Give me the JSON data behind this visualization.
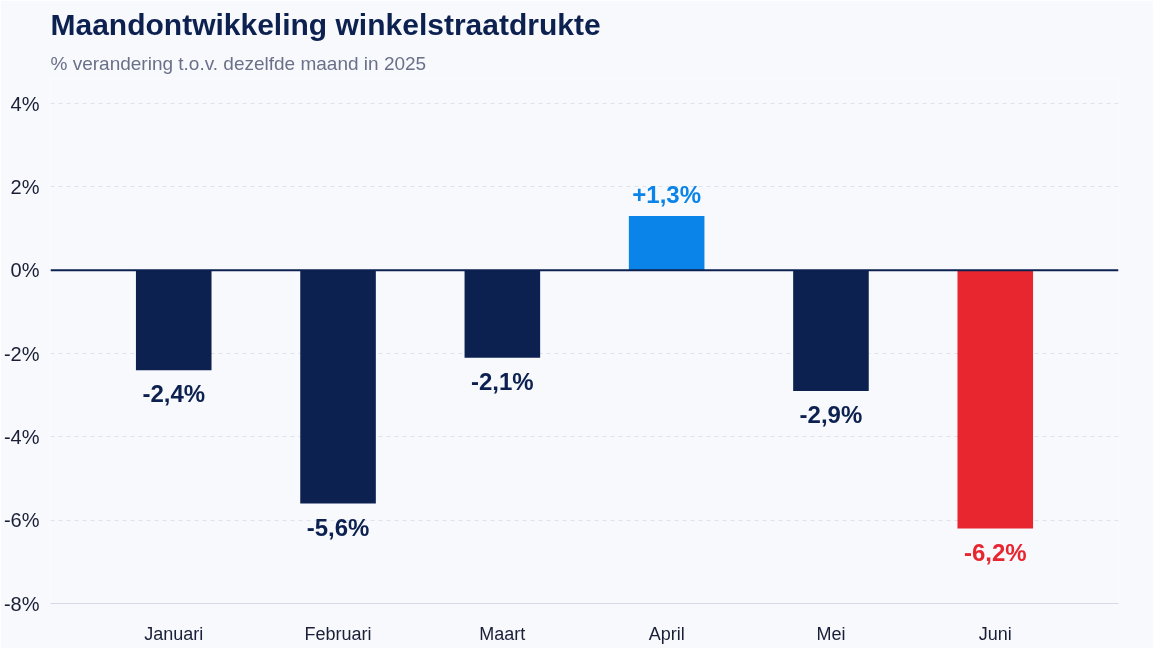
{
  "chart_data": {
    "type": "bar",
    "title": "Maandontwikkeling winkelstraatdrukte",
    "subtitle": "% verandering t.o.v. dezelfde maand in 2025",
    "categories": [
      "Januari",
      "Februari",
      "Maart",
      "April",
      "Mei",
      "Juni"
    ],
    "values": [
      -2.4,
      -5.6,
      -2.1,
      1.3,
      -2.9,
      -6.2
    ],
    "colors": [
      "#0d2150",
      "#0d2150",
      "#0d2150",
      "#0a84e8",
      "#0d2150",
      "#e8262f"
    ],
    "value_labels": [
      "-2,4%",
      "-5,6%",
      "-2,1%",
      "+1,3%",
      "-2,9%",
      "-6,2%"
    ],
    "ylim": [
      -8,
      4.6
    ],
    "yticks": [
      {
        "value": -8,
        "label": "-8%"
      },
      {
        "value": -6,
        "label": "-6%"
      },
      {
        "value": -4,
        "label": "-4%"
      },
      {
        "value": -2,
        "label": "-2%"
      },
      {
        "value": 0,
        "label": "0%"
      },
      {
        "value": 2,
        "label": "2%"
      },
      {
        "value": 4,
        "label": "4%"
      }
    ],
    "grid": "y",
    "ref_lines": [
      {
        "axis": "y",
        "value": 0,
        "color": "#0d2150",
        "line_style": "solid"
      }
    ]
  }
}
